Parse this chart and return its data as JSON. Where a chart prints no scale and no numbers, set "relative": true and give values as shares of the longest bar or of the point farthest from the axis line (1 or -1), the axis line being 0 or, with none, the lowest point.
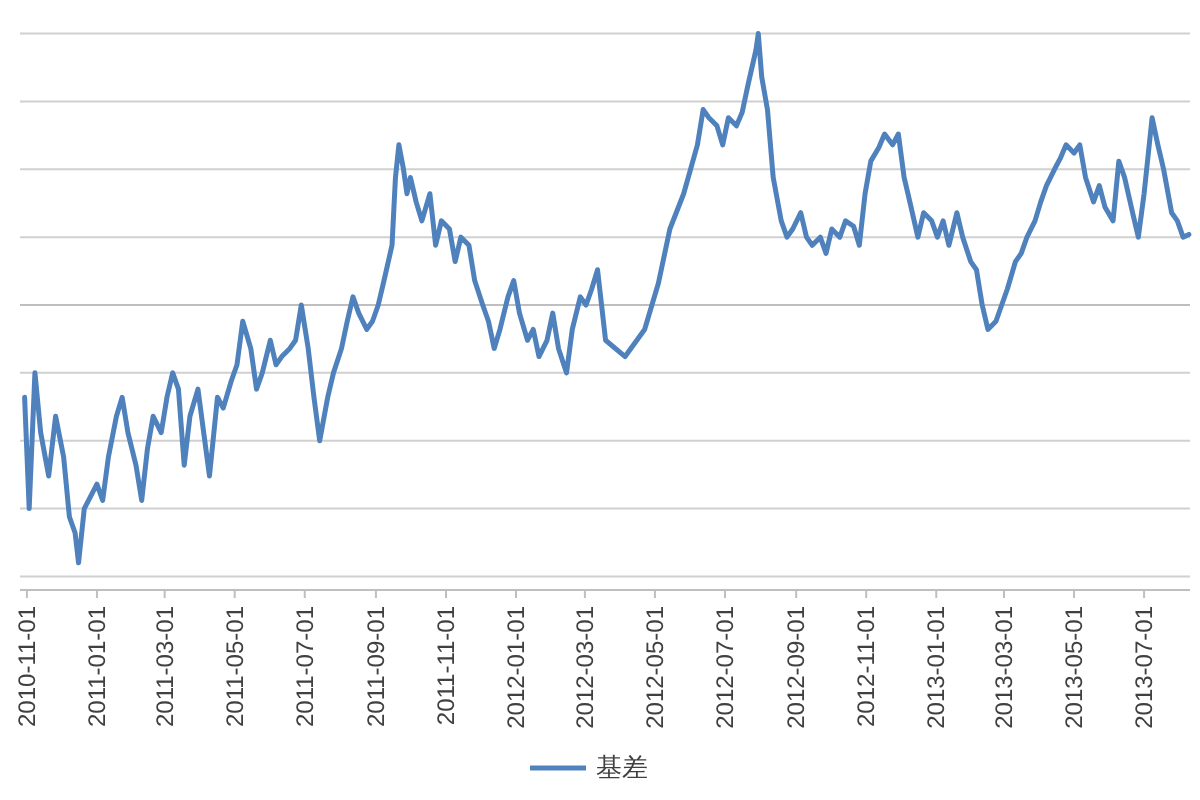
{
  "chart_data": {
    "type": "line",
    "relative": true,
    "grid": true,
    "legend": "bottom",
    "marker": "none",
    "line_style": "solid",
    "xlim": [
      "2010-10-26",
      "2013-08-10"
    ],
    "xticks": [
      {
        "value": "2010-11-01",
        "label": "2010-11-01"
      },
      {
        "value": "2011-01-01",
        "label": "2011-01-01"
      },
      {
        "value": "2011-03-01",
        "label": "2011-03-01"
      },
      {
        "value": "2011-05-01",
        "label": "2011-05-01"
      },
      {
        "value": "2011-07-01",
        "label": "2011-07-01"
      },
      {
        "value": "2011-09-01",
        "label": "2011-09-01"
      },
      {
        "value": "2011-11-01",
        "label": "2011-11-01"
      },
      {
        "value": "2012-01-01",
        "label": "2012-01-01"
      },
      {
        "value": "2012-03-01",
        "label": "2012-03-01"
      },
      {
        "value": "2012-05-01",
        "label": "2012-05-01"
      },
      {
        "value": "2012-07-01",
        "label": "2012-07-01"
      },
      {
        "value": "2012-09-01",
        "label": "2012-09-01"
      },
      {
        "value": "2012-11-01",
        "label": "2012-11-01"
      },
      {
        "value": "2013-01-01",
        "label": "2013-01-01"
      },
      {
        "value": "2013-03-01",
        "label": "2013-03-01"
      },
      {
        "value": "2013-05-01",
        "label": "2013-05-01"
      },
      {
        "value": "2013-07-01",
        "label": "2013-07-01"
      }
    ],
    "x": [
      "2010-10-30",
      "2010-11-03",
      "2010-11-08",
      "2010-11-13",
      "2010-11-20",
      "2010-11-26",
      "2010-12-03",
      "2010-12-08",
      "2010-12-13",
      "2010-12-16",
      "2010-12-21",
      "2011-01-01",
      "2011-01-06",
      "2011-01-11",
      "2011-01-18",
      "2011-01-23",
      "2011-01-28",
      "2011-02-04",
      "2011-02-09",
      "2011-02-14",
      "2011-02-19",
      "2011-02-26",
      "2011-03-03",
      "2011-03-08",
      "2011-03-13",
      "2011-03-18",
      "2011-03-23",
      "2011-03-30",
      "2011-04-04",
      "2011-04-09",
      "2011-04-16",
      "2011-04-21",
      "2011-04-28",
      "2011-05-03",
      "2011-05-08",
      "2011-05-15",
      "2011-05-20",
      "2011-05-25",
      "2011-06-01",
      "2011-06-06",
      "2011-06-11",
      "2011-06-18",
      "2011-06-23",
      "2011-06-28",
      "2011-07-04",
      "2011-07-09",
      "2011-07-14",
      "2011-07-21",
      "2011-07-26",
      "2011-08-02",
      "2011-08-07",
      "2011-08-12",
      "2011-08-17",
      "2011-08-24",
      "2011-08-29",
      "2011-09-03",
      "2011-09-08",
      "2011-09-15",
      "2011-09-18",
      "2011-09-21",
      "2011-09-25",
      "2011-09-28",
      "2011-10-01",
      "2011-10-06",
      "2011-10-11",
      "2011-10-18",
      "2011-10-23",
      "2011-10-28",
      "2011-11-04",
      "2011-11-09",
      "2011-11-14",
      "2011-11-21",
      "2011-11-26",
      "2011-12-03",
      "2011-12-08",
      "2011-12-13",
      "2011-12-18",
      "2011-12-25",
      "2011-12-30",
      "2012-01-04",
      "2012-01-11",
      "2012-01-16",
      "2012-01-21",
      "2012-01-28",
      "2012-02-02",
      "2012-02-07",
      "2012-02-14",
      "2012-02-19",
      "2012-02-26",
      "2012-03-02",
      "2012-03-07",
      "2012-03-12",
      "2012-03-19",
      "2012-04-05",
      "2012-04-22",
      "2012-05-04",
      "2012-05-14",
      "2012-05-26",
      "2012-06-07",
      "2012-06-12",
      "2012-06-17",
      "2012-06-24",
      "2012-06-29",
      "2012-07-04",
      "2012-07-11",
      "2012-07-16",
      "2012-07-21",
      "2012-07-28",
      "2012-07-30",
      "2012-08-02",
      "2012-08-07",
      "2012-08-12",
      "2012-08-19",
      "2012-08-24",
      "2012-08-29",
      "2012-09-05",
      "2012-09-10",
      "2012-09-15",
      "2012-09-22",
      "2012-09-27",
      "2012-10-02",
      "2012-10-09",
      "2012-10-14",
      "2012-10-21",
      "2012-10-26",
      "2012-10-31",
      "2012-11-05",
      "2012-11-12",
      "2012-11-17",
      "2012-11-24",
      "2012-11-29",
      "2012-12-04",
      "2012-12-09",
      "2012-12-16",
      "2012-12-21",
      "2012-12-28",
      "2013-01-02",
      "2013-01-07",
      "2013-01-12",
      "2013-01-19",
      "2013-01-24",
      "2013-01-31",
      "2013-02-05",
      "2013-02-10",
      "2013-02-15",
      "2013-02-22",
      "2013-02-27",
      "2013-03-04",
      "2013-03-11",
      "2013-03-16",
      "2013-03-21",
      "2013-03-28",
      "2013-04-02",
      "2013-04-07",
      "2013-04-14",
      "2013-04-19",
      "2013-04-24",
      "2013-05-01",
      "2013-05-06",
      "2013-05-11",
      "2013-05-18",
      "2013-05-23",
      "2013-05-28",
      "2013-06-04",
      "2013-06-09",
      "2013-06-14",
      "2013-06-21",
      "2013-06-26",
      "2013-07-01",
      "2013-07-08",
      "2013-07-13",
      "2013-07-18",
      "2013-07-25",
      "2013-07-30",
      "2013-08-04",
      "2013-08-09"
    ],
    "series": [
      {
        "name": "基差",
        "color": "#4f81bd",
        "values": [
          -0.34,
          -0.75,
          -0.25,
          -0.47,
          -0.63,
          -0.41,
          -0.56,
          -0.78,
          -0.84,
          -0.95,
          -0.75,
          -0.66,
          -0.72,
          -0.56,
          -0.41,
          -0.34,
          -0.47,
          -0.59,
          -0.72,
          -0.53,
          -0.41,
          -0.47,
          -0.34,
          -0.25,
          -0.31,
          -0.59,
          -0.41,
          -0.31,
          -0.47,
          -0.63,
          -0.34,
          -0.38,
          -0.28,
          -0.22,
          -0.06,
          -0.16,
          -0.31,
          -0.25,
          -0.13,
          -0.22,
          -0.19,
          -0.16,
          -0.13,
          0.0,
          -0.16,
          -0.34,
          -0.5,
          -0.34,
          -0.25,
          -0.16,
          -0.06,
          0.03,
          -0.03,
          -0.09,
          -0.06,
          0.0,
          0.09,
          0.22,
          0.47,
          0.59,
          0.5,
          0.41,
          0.47,
          0.38,
          0.31,
          0.41,
          0.22,
          0.31,
          0.28,
          0.16,
          0.25,
          0.22,
          0.09,
          0.0,
          -0.06,
          -0.16,
          -0.09,
          0.03,
          0.09,
          -0.03,
          -0.13,
          -0.09,
          -0.19,
          -0.13,
          -0.03,
          -0.16,
          -0.25,
          -0.09,
          0.03,
          0.0,
          0.06,
          0.13,
          -0.13,
          -0.19,
          -0.09,
          0.08,
          0.28,
          0.41,
          0.59,
          0.72,
          0.69,
          0.66,
          0.59,
          0.69,
          0.66,
          0.71,
          0.81,
          0.94,
          1.0,
          0.84,
          0.72,
          0.47,
          0.31,
          0.25,
          0.28,
          0.34,
          0.25,
          0.22,
          0.25,
          0.19,
          0.28,
          0.25,
          0.31,
          0.29,
          0.22,
          0.41,
          0.53,
          0.58,
          0.63,
          0.59,
          0.63,
          0.47,
          0.38,
          0.25,
          0.34,
          0.31,
          0.25,
          0.31,
          0.22,
          0.34,
          0.25,
          0.16,
          0.13,
          0.0,
          -0.09,
          -0.06,
          0.0,
          0.06,
          0.16,
          0.19,
          0.25,
          0.31,
          0.38,
          0.44,
          0.5,
          0.54,
          0.59,
          0.56,
          0.59,
          0.47,
          0.38,
          0.44,
          0.36,
          0.31,
          0.53,
          0.47,
          0.34,
          0.25,
          0.41,
          0.69,
          0.59,
          0.5,
          0.34,
          0.31,
          0.25,
          0.26
        ]
      }
    ]
  }
}
